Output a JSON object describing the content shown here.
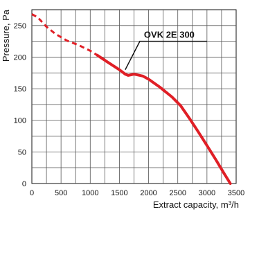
{
  "chart_data": {
    "type": "line",
    "title": "",
    "xlabel_base": "Extract capacity, m",
    "xlabel_sup": "3",
    "xlabel_tail": "/h",
    "ylabel": "Pressure, Pa",
    "x_ticks": [
      0,
      500,
      1000,
      1500,
      2000,
      2500,
      3000,
      3500
    ],
    "y_ticks": [
      0,
      50,
      100,
      150,
      200,
      250
    ],
    "xlim": [
      0,
      3500
    ],
    "ylim": [
      0,
      275
    ],
    "grid": true,
    "series": [
      {
        "name": "OVK 2E 300",
        "color": "#e01f26",
        "dashed_points": [
          [
            0,
            268
          ],
          [
            100,
            263
          ],
          [
            250,
            248
          ],
          [
            400,
            237
          ],
          [
            600,
            226
          ],
          [
            800,
            219
          ],
          [
            1000,
            210
          ],
          [
            1120,
            203
          ]
        ],
        "solid_points": [
          [
            1120,
            203
          ],
          [
            1300,
            192
          ],
          [
            1500,
            180
          ],
          [
            1600,
            173
          ],
          [
            1650,
            171
          ],
          [
            1700,
            172
          ],
          [
            1750,
            173
          ],
          [
            1900,
            170
          ],
          [
            2000,
            165
          ],
          [
            2200,
            152
          ],
          [
            2400,
            137
          ],
          [
            2550,
            123
          ],
          [
            2700,
            103
          ],
          [
            2850,
            82
          ],
          [
            3000,
            60
          ],
          [
            3150,
            38
          ],
          [
            3300,
            15
          ],
          [
            3400,
            0
          ]
        ]
      }
    ],
    "annotation": {
      "text": "OVK 2E 300",
      "pointer_target": [
        1600,
        180
      ],
      "pointer_elbow": [
        1850,
        225
      ],
      "line_end": [
        3000,
        225
      ]
    }
  }
}
